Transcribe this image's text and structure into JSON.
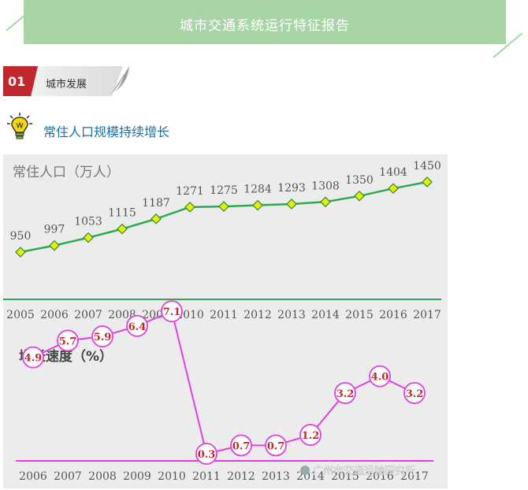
{
  "header": {
    "title": "城市交通系统运行特征报告"
  },
  "section": {
    "number": "01",
    "label": "城市发展"
  },
  "subsection": {
    "title": "常住人口规模持续增长",
    "icon": "lightbulb-icon"
  },
  "watermark": "广州市交通运输研究所",
  "colors": {
    "banner": "#a8d5a6",
    "badge": "#c0282e",
    "subtitle": "#1d6fa8",
    "population": "#2eaa50",
    "growth": "#e040e0",
    "growth_label": "#c0282e"
  },
  "chart_data": [
    {
      "type": "line",
      "title": "常住人口（万人）",
      "x": [
        "2005",
        "2006",
        "2007",
        "2008",
        "2009",
        "2010",
        "2011",
        "2012",
        "2013",
        "2014",
        "2015",
        "2016",
        "2017"
      ],
      "values": [
        950,
        997,
        1053,
        1115,
        1187,
        1271,
        1275,
        1284,
        1293,
        1308,
        1350,
        1404,
        1450
      ],
      "data_labels": [
        "950",
        "997",
        "1053",
        "1115",
        "1187",
        "1271",
        "1275",
        "1284",
        "1293",
        "1308",
        "1350",
        "1404",
        "1450"
      ],
      "grid": false,
      "legend": "none"
    },
    {
      "type": "line",
      "title": "增长速度（%）",
      "x": [
        "2006",
        "2007",
        "2008",
        "2009",
        "2010",
        "2011",
        "2012",
        "2013",
        "2014",
        "2015",
        "2016",
        "2017"
      ],
      "values": [
        4.9,
        5.7,
        5.9,
        6.4,
        7.1,
        0.3,
        0.7,
        0.7,
        1.2,
        3.2,
        4.0,
        3.2
      ],
      "data_labels": [
        "4.9",
        "5.7",
        "5.9",
        "6.4",
        "7.1",
        "0.3",
        "0.7",
        "0.7",
        "1.2",
        "3.2",
        "4.0",
        "3.2"
      ],
      "grid": false,
      "legend": "none"
    }
  ]
}
